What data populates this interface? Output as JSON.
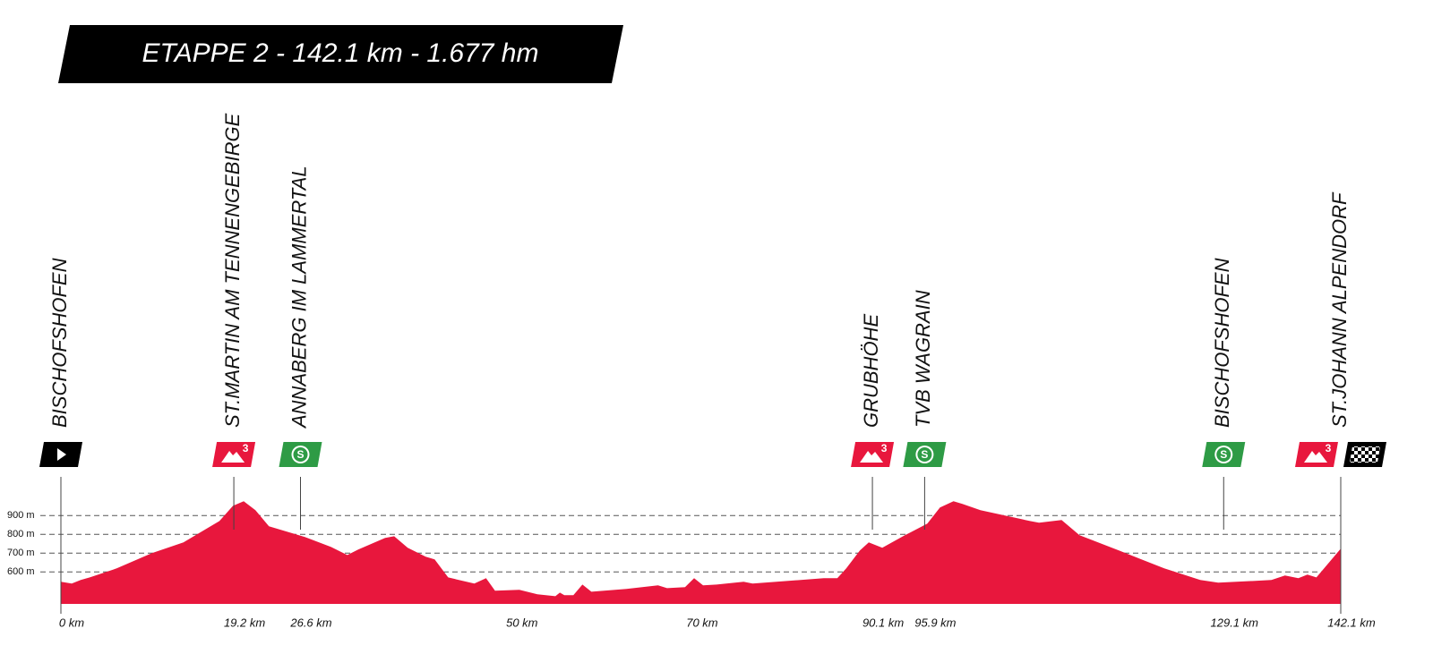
{
  "chart_data": {
    "type": "area",
    "title": "ETAPPE 2 - 142.1 km - 1.677 hm",
    "color": "#e8173d",
    "x": [
      0,
      1.2,
      2.2,
      3.2,
      6.2,
      10.1,
      13.6,
      17.6,
      19.1,
      20.3,
      21.6,
      23.1,
      27.1,
      30.0,
      31.8,
      33.0,
      36.0,
      37.0,
      38.5,
      40.5,
      41.5,
      43.0,
      45.9,
      47.2,
      48.2,
      50.9,
      52.9,
      54.9,
      55.4,
      55.9,
      56.9,
      57.9,
      58.9,
      62.8,
      66.3,
      67.3,
      69.3,
      70.3,
      71.3,
      72.8,
      75.8,
      76.8,
      84.7,
      86.2,
      87.2,
      88.7,
      89.7,
      91.2,
      93.7,
      96.2,
      97.6,
      99.1,
      100.1,
      102.1,
      107.6,
      108.6,
      111.1,
      113.1,
      117.5,
      122.5,
      126.5,
      128.5,
      134.4,
      135.9,
      137.4,
      138.4,
      139.4,
      142.1
    ],
    "values": [
      548,
      538,
      557,
      571,
      619,
      700,
      757,
      871,
      952,
      976,
      929,
      843,
      786,
      733,
      690,
      719,
      781,
      790,
      729,
      681,
      667,
      571,
      538,
      567,
      500,
      505,
      481,
      471,
      490,
      476,
      476,
      533,
      495,
      510,
      529,
      514,
      519,
      567,
      529,
      533,
      548,
      538,
      567,
      567,
      619,
      714,
      757,
      729,
      795,
      857,
      943,
      976,
      962,
      929,
      871,
      862,
      876,
      795,
      714,
      619,
      557,
      543,
      557,
      581,
      567,
      586,
      571,
      724
    ],
    "xlim": [
      0,
      142.1
    ],
    "ylim": [
      430,
      1000
    ],
    "yticks": [
      {
        "value": 600,
        "label": "600 m"
      },
      {
        "value": 700,
        "label": "700 m"
      },
      {
        "value": 800,
        "label": "800 m"
      },
      {
        "value": 900,
        "label": "900 m"
      }
    ],
    "xticks": [
      {
        "value": 0,
        "label": "0 km"
      },
      {
        "value": 19.2,
        "label": "19.2 km"
      },
      {
        "value": 26.6,
        "label": "26.6 km"
      },
      {
        "value": 50,
        "label": "50 km"
      },
      {
        "value": 70,
        "label": "70 km"
      },
      {
        "value": 90.1,
        "label": "90.1 km"
      },
      {
        "value": 95.9,
        "label": "95.9 km"
      },
      {
        "value": 129.1,
        "label": "129.1 km"
      },
      {
        "value": 142.1,
        "label": "142.1 km"
      }
    ],
    "grid": true,
    "waypoints": [
      {
        "name": "BISCHOFSHOFEN",
        "km": 0,
        "icons": [
          {
            "kind": "start"
          }
        ]
      },
      {
        "name": "ST.MARTIN AM TENNENGEBIRGE",
        "km": 19.2,
        "icons": [
          {
            "kind": "kom",
            "label": "3"
          }
        ]
      },
      {
        "name": "ANNABERG IM LAMMERTAL",
        "km": 26.6,
        "icons": [
          {
            "kind": "sprint",
            "label": "S"
          }
        ]
      },
      {
        "name": "GRUBHÖHE",
        "km": 90.1,
        "icons": [
          {
            "kind": "kom",
            "label": "3"
          }
        ]
      },
      {
        "name": "TVB WAGRAIN",
        "km": 95.9,
        "icons": [
          {
            "kind": "sprint",
            "label": "S"
          }
        ]
      },
      {
        "name": "BISCHOFSHOFEN",
        "km": 129.1,
        "icons": [
          {
            "kind": "sprint",
            "label": "S"
          }
        ]
      },
      {
        "name": "ST.JOHANN ALPENDORF",
        "km": 142.1,
        "icons": [
          {
            "kind": "kom",
            "label": "3"
          },
          {
            "kind": "finish"
          }
        ]
      }
    ]
  }
}
